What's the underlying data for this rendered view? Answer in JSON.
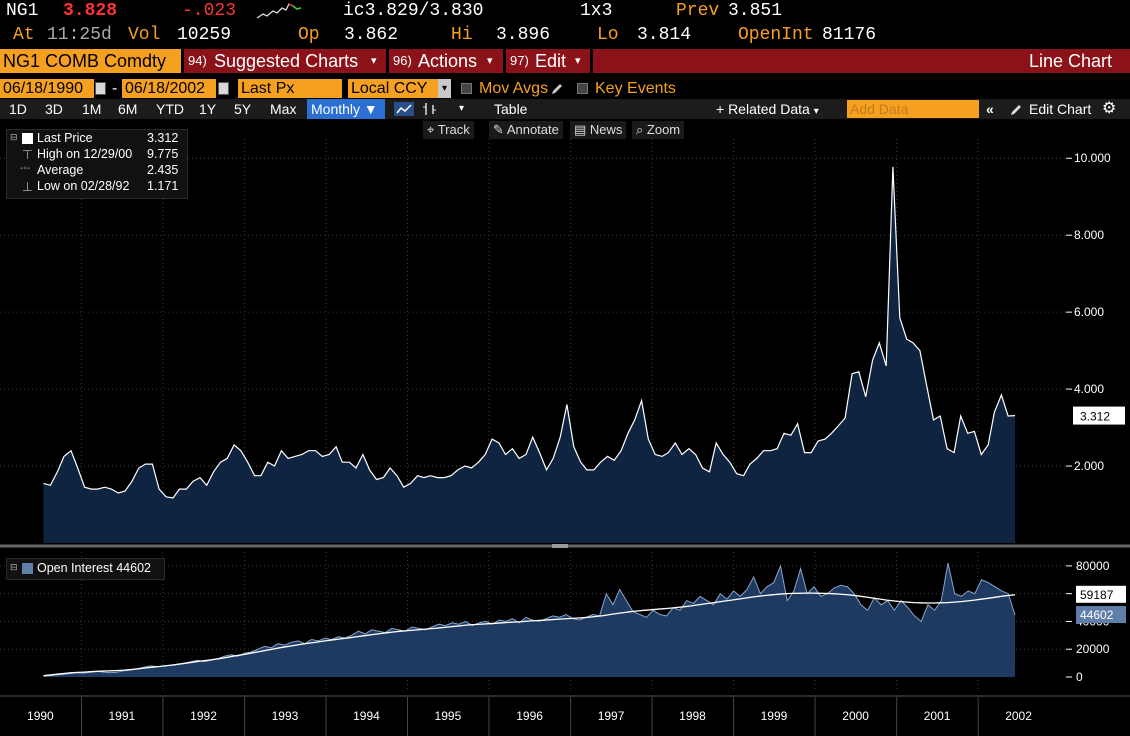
{
  "quote": {
    "ticker": "NG1",
    "last": "3.828",
    "change": "-.023",
    "ic_label": "ic",
    "bid_ask": "3.829/3.830",
    "size": "1x3",
    "prev_label": "Prev",
    "prev": "3.851",
    "at_label": "At",
    "time": "11:25d",
    "vol_label": "Vol",
    "vol": "10259",
    "op_label": "Op",
    "op": "3.862",
    "hi_label": "Hi",
    "hi": "3.896",
    "lo_label": "Lo",
    "lo": "3.814",
    "oi_label": "OpenInt",
    "oi": "81176"
  },
  "menubar": {
    "security": "NG1 COMB Comdty",
    "suggested_num": "94)",
    "suggested": "Suggested Charts",
    "actions_num": "96)",
    "actions": "Actions",
    "edit_num": "97)",
    "edit": "Edit",
    "chart_title": "Line Chart"
  },
  "datebar": {
    "start": "06/18/1990",
    "dash": "-",
    "end": "06/18/2002",
    "field": "Last Px",
    "currency": "Local CCY",
    "mov_avgs": "Mov Avgs",
    "key_events": "Key Events"
  },
  "toolbar": {
    "ranges": [
      "1D",
      "3D",
      "1M",
      "6M",
      "YTD",
      "1Y",
      "5Y",
      "Max"
    ],
    "period": "Monthly",
    "table": "Table",
    "related": "+ Related Data",
    "add_data_placeholder": "Add Data",
    "edit_chart": "Edit Chart"
  },
  "subtoolbar": {
    "track": "Track",
    "annotate": "Annotate",
    "news": "News",
    "zoom": "Zoom"
  },
  "price_legend": {
    "last_label": "Last Price",
    "last_value": "3.312",
    "high_label": "High on 12/29/00",
    "high_value": "9.775",
    "avg_label": "Average",
    "avg_value": "2.435",
    "low_label": "Low on 02/28/92",
    "low_value": "1.171"
  },
  "oi_legend": {
    "label": "Open Interest 44602"
  },
  "colors": {
    "background": "#000000",
    "area_fill": "#0f2440",
    "line": "#ffffff",
    "accent_amber": "#f5a020",
    "accent_red": "#8b1218",
    "oi_fill": "#1e3a60"
  },
  "chart_data": [
    {
      "type": "area",
      "series": [
        {
          "name": "Last Price",
          "values_key": "x"
        }
      ],
      "x": [
        "1990-07",
        "1990-08",
        "1990-09",
        "1990-10",
        "1990-11",
        "1990-12",
        "1991-01",
        "1991-02",
        "1991-03",
        "1991-04",
        "1991-05",
        "1991-06",
        "1991-07",
        "1991-08",
        "1991-09",
        "1991-10",
        "1991-11",
        "1991-12",
        "1992-01",
        "1992-02",
        "1992-03",
        "1992-04",
        "1992-05",
        "1992-06",
        "1992-07",
        "1992-08",
        "1992-09",
        "1992-10",
        "1992-11",
        "1992-12",
        "1993-01",
        "1993-02",
        "1993-03",
        "1993-04",
        "1993-05",
        "1993-06",
        "1993-07",
        "1993-08",
        "1993-09",
        "1993-10",
        "1993-11",
        "1993-12",
        "1994-01",
        "1994-02",
        "1994-03",
        "1994-04",
        "1994-05",
        "1994-06",
        "1994-07",
        "1994-08",
        "1994-09",
        "1994-10",
        "1994-11",
        "1994-12",
        "1995-01",
        "1995-02",
        "1995-03",
        "1995-04",
        "1995-05",
        "1995-06",
        "1995-07",
        "1995-08",
        "1995-09",
        "1995-10",
        "1995-11",
        "1995-12",
        "1996-01",
        "1996-02",
        "1996-03",
        "1996-04",
        "1996-05",
        "1996-06",
        "1996-07",
        "1996-08",
        "1996-09",
        "1996-10",
        "1996-11",
        "1996-12",
        "1997-01",
        "1997-02",
        "1997-03",
        "1997-04",
        "1997-05",
        "1997-06",
        "1997-07",
        "1997-08",
        "1997-09",
        "1997-10",
        "1997-11",
        "1997-12",
        "1998-01",
        "1998-02",
        "1998-03",
        "1998-04",
        "1998-05",
        "1998-06",
        "1998-07",
        "1998-08",
        "1998-09",
        "1998-10",
        "1998-11",
        "1998-12",
        "1999-01",
        "1999-02",
        "1999-03",
        "1999-04",
        "1999-05",
        "1999-06",
        "1999-07",
        "1999-08",
        "1999-09",
        "1999-10",
        "1999-11",
        "1999-12",
        "2000-01",
        "2000-02",
        "2000-03",
        "2000-04",
        "2000-05",
        "2000-06",
        "2000-07",
        "2000-08",
        "2000-09",
        "2000-10",
        "2000-11",
        "2000-12",
        "2001-01",
        "2001-02",
        "2001-03",
        "2001-04",
        "2001-05",
        "2001-06",
        "2001-07",
        "2001-08",
        "2001-09",
        "2001-10",
        "2001-11",
        "2001-12",
        "2002-01",
        "2002-02",
        "2002-03",
        "2002-04",
        "2002-05",
        "2002-06"
      ],
      "values": [
        1.55,
        1.5,
        1.85,
        2.25,
        2.4,
        1.95,
        1.45,
        1.4,
        1.4,
        1.45,
        1.4,
        1.3,
        1.35,
        1.6,
        1.95,
        2.05,
        2.05,
        1.4,
        1.2,
        1.17,
        1.4,
        1.4,
        1.6,
        1.7,
        1.5,
        1.85,
        2.1,
        2.2,
        2.55,
        2.4,
        2.1,
        1.75,
        1.75,
        2.1,
        2.0,
        2.4,
        2.2,
        2.25,
        2.3,
        2.4,
        2.4,
        2.25,
        2.3,
        2.5,
        2.1,
        2.1,
        1.95,
        2.3,
        1.9,
        1.65,
        1.7,
        1.95,
        1.75,
        1.45,
        1.55,
        1.75,
        1.7,
        1.75,
        1.7,
        1.7,
        1.75,
        1.9,
        2.0,
        1.95,
        2.1,
        2.3,
        2.7,
        2.6,
        2.3,
        2.45,
        2.2,
        2.3,
        2.75,
        2.35,
        1.9,
        2.2,
        2.75,
        3.6,
        2.5,
        2.1,
        1.9,
        1.9,
        2.1,
        2.25,
        2.15,
        2.4,
        2.85,
        3.2,
        3.7,
        2.7,
        2.3,
        2.25,
        2.35,
        2.6,
        2.3,
        2.45,
        2.3,
        1.95,
        1.85,
        2.6,
        2.3,
        2.1,
        1.8,
        1.75,
        2.05,
        2.2,
        2.4,
        2.4,
        2.45,
        2.85,
        2.8,
        3.1,
        2.35,
        2.35,
        2.65,
        2.7,
        2.85,
        3.05,
        3.25,
        4.4,
        4.45,
        3.8,
        4.75,
        5.2,
        4.6,
        9.775,
        5.85,
        5.3,
        5.2,
        5.0,
        4.1,
        3.2,
        3.3,
        2.45,
        2.35,
        3.3,
        2.85,
        2.9,
        2.3,
        2.55,
        3.4,
        3.85,
        3.3,
        3.312
      ],
      "ylim": [
        0,
        10.5
      ],
      "yticks": [
        "2.000",
        "4.000",
        "6.000",
        "8.000",
        "10.000"
      ],
      "ytick_values": [
        2,
        4,
        6,
        8,
        10
      ],
      "last_label": "3.312"
    },
    {
      "type": "area",
      "series": [
        {
          "name": "Open Interest",
          "values_key": "values"
        },
        {
          "name": "",
          "values_key": "ma"
        }
      ],
      "ylim": [
        0,
        90000
      ],
      "yticks": [
        "0",
        "20000",
        "40000",
        "60000",
        "80000"
      ],
      "ytick_values": [
        0,
        20000,
        40000,
        60000,
        80000
      ],
      "values": [
        500,
        1000,
        1500,
        2000,
        2500,
        3000,
        2800,
        3500,
        4000,
        3500,
        3000,
        3500,
        4500,
        5000,
        6000,
        7000,
        8000,
        7500,
        8000,
        8500,
        9000,
        10000,
        11000,
        12000,
        11000,
        12000,
        13000,
        15000,
        16000,
        15000,
        17000,
        18000,
        20000,
        22000,
        21000,
        24000,
        23000,
        25000,
        26000,
        24000,
        27000,
        26000,
        28000,
        27000,
        29000,
        28000,
        30000,
        33000,
        31000,
        34000,
        33000,
        32000,
        35000,
        34000,
        33000,
        36000,
        35000,
        34000,
        36000,
        38000,
        37000,
        39000,
        38000,
        40000,
        37000,
        39000,
        40000,
        38000,
        41000,
        40000,
        42000,
        39000,
        43000,
        41000,
        40000,
        42000,
        44000,
        43000,
        45000,
        42000,
        41000,
        43000,
        45000,
        44000,
        60000,
        52000,
        63000,
        55000,
        47000,
        45000,
        43000,
        48000,
        45000,
        44000,
        50000,
        48000,
        55000,
        53000,
        58000,
        55000,
        52000,
        60000,
        56000,
        62000,
        58000,
        63000,
        72000,
        60000,
        65000,
        68000,
        80000,
        55000,
        62000,
        78000,
        60000,
        65000,
        58000,
        60000,
        64000,
        66000,
        65000,
        60000,
        52000,
        48000,
        57000,
        52000,
        55000,
        48000,
        55000,
        50000,
        44000,
        40000,
        52000,
        48000,
        55000,
        82000,
        60000,
        58000,
        62000,
        60000,
        70000,
        68000,
        65000,
        62000,
        60000,
        44602
      ],
      "ma_values": [
        1000,
        1500,
        2000,
        2500,
        3000,
        3300,
        3500,
        3800,
        4100,
        4300,
        4500,
        4700,
        5000,
        5400,
        5900,
        6500,
        7000,
        7500,
        8000,
        8600,
        9200,
        9900,
        10600,
        11300,
        11900,
        12500,
        13200,
        14000,
        14900,
        15700,
        16500,
        17400,
        18300,
        19200,
        20100,
        21000,
        21800,
        22600,
        23400,
        24100,
        24800,
        25500,
        26200,
        26800,
        27400,
        28000,
        28700,
        29400,
        30000,
        30700,
        31300,
        31900,
        32500,
        33000,
        33400,
        33800,
        34200,
        34600,
        35000,
        35500,
        36000,
        36500,
        37000,
        37500,
        37800,
        38100,
        38400,
        38700,
        39000,
        39300,
        39600,
        39900,
        40300,
        40600,
        40900,
        41200,
        41500,
        41800,
        42100,
        42400,
        42700,
        43100,
        43600,
        44200,
        45000,
        45700,
        46400,
        47000,
        47500,
        48000,
        48400,
        48800,
        49200,
        49600,
        50100,
        50600,
        51200,
        51900,
        52600,
        53300,
        54000,
        54700,
        55400,
        56100,
        56800,
        57500,
        58200,
        58700,
        59200,
        59600,
        60000,
        60200,
        60300,
        60400,
        60400,
        60300,
        60200,
        60000,
        59700,
        59300,
        58800,
        58200,
        57500,
        56800,
        56100,
        55400,
        54800,
        54300,
        53900,
        53600,
        53400,
        53300,
        53300,
        53400,
        53600,
        53900,
        54300,
        54800,
        55400,
        56000,
        56700,
        57400,
        58100,
        58700,
        59187
      ]
    },
    {
      "type": "axis",
      "x_labels": [
        "1990",
        "1991",
        "1992",
        "1993",
        "1994",
        "1995",
        "1996",
        "1997",
        "1998",
        "1999",
        "2000",
        "2001",
        "2002"
      ],
      "oi_last_label": "44602",
      "ma_last_label": "59187"
    }
  ]
}
